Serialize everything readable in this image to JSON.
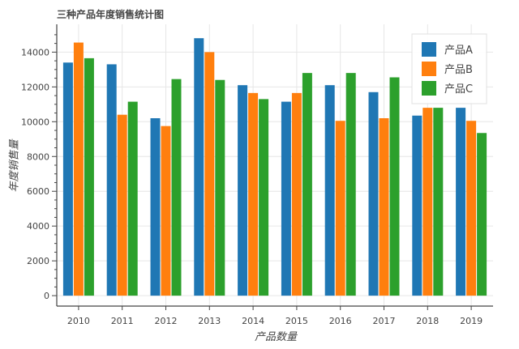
{
  "chart_data": {
    "type": "bar",
    "title": "三种产品年度销售统计图",
    "xlabel": "产品数量",
    "ylabel": "年度销售量",
    "categories": [
      "2010",
      "2011",
      "2012",
      "2013",
      "2014",
      "2015",
      "2016",
      "2017",
      "2018",
      "2019"
    ],
    "series": [
      {
        "name": "产品A",
        "color": "#1f77b4",
        "values": [
          13400,
          13300,
          10200,
          14800,
          12100,
          11150,
          12100,
          11700,
          10350,
          10800
        ]
      },
      {
        "name": "产品B",
        "color": "#ff7f0e",
        "values": [
          14550,
          10400,
          9750,
          14000,
          11650,
          11650,
          10050,
          10200,
          10800,
          10050
        ]
      },
      {
        "name": "产品C",
        "color": "#2ca02c",
        "values": [
          13650,
          11150,
          12450,
          12400,
          11300,
          12800,
          12800,
          12550,
          10800,
          9350
        ]
      }
    ],
    "ylim": [
      -600,
      15600
    ],
    "yticks": [
      0,
      2000,
      4000,
      6000,
      8000,
      10000,
      12000,
      14000
    ],
    "grid": true,
    "legend_position": "top-right"
  }
}
